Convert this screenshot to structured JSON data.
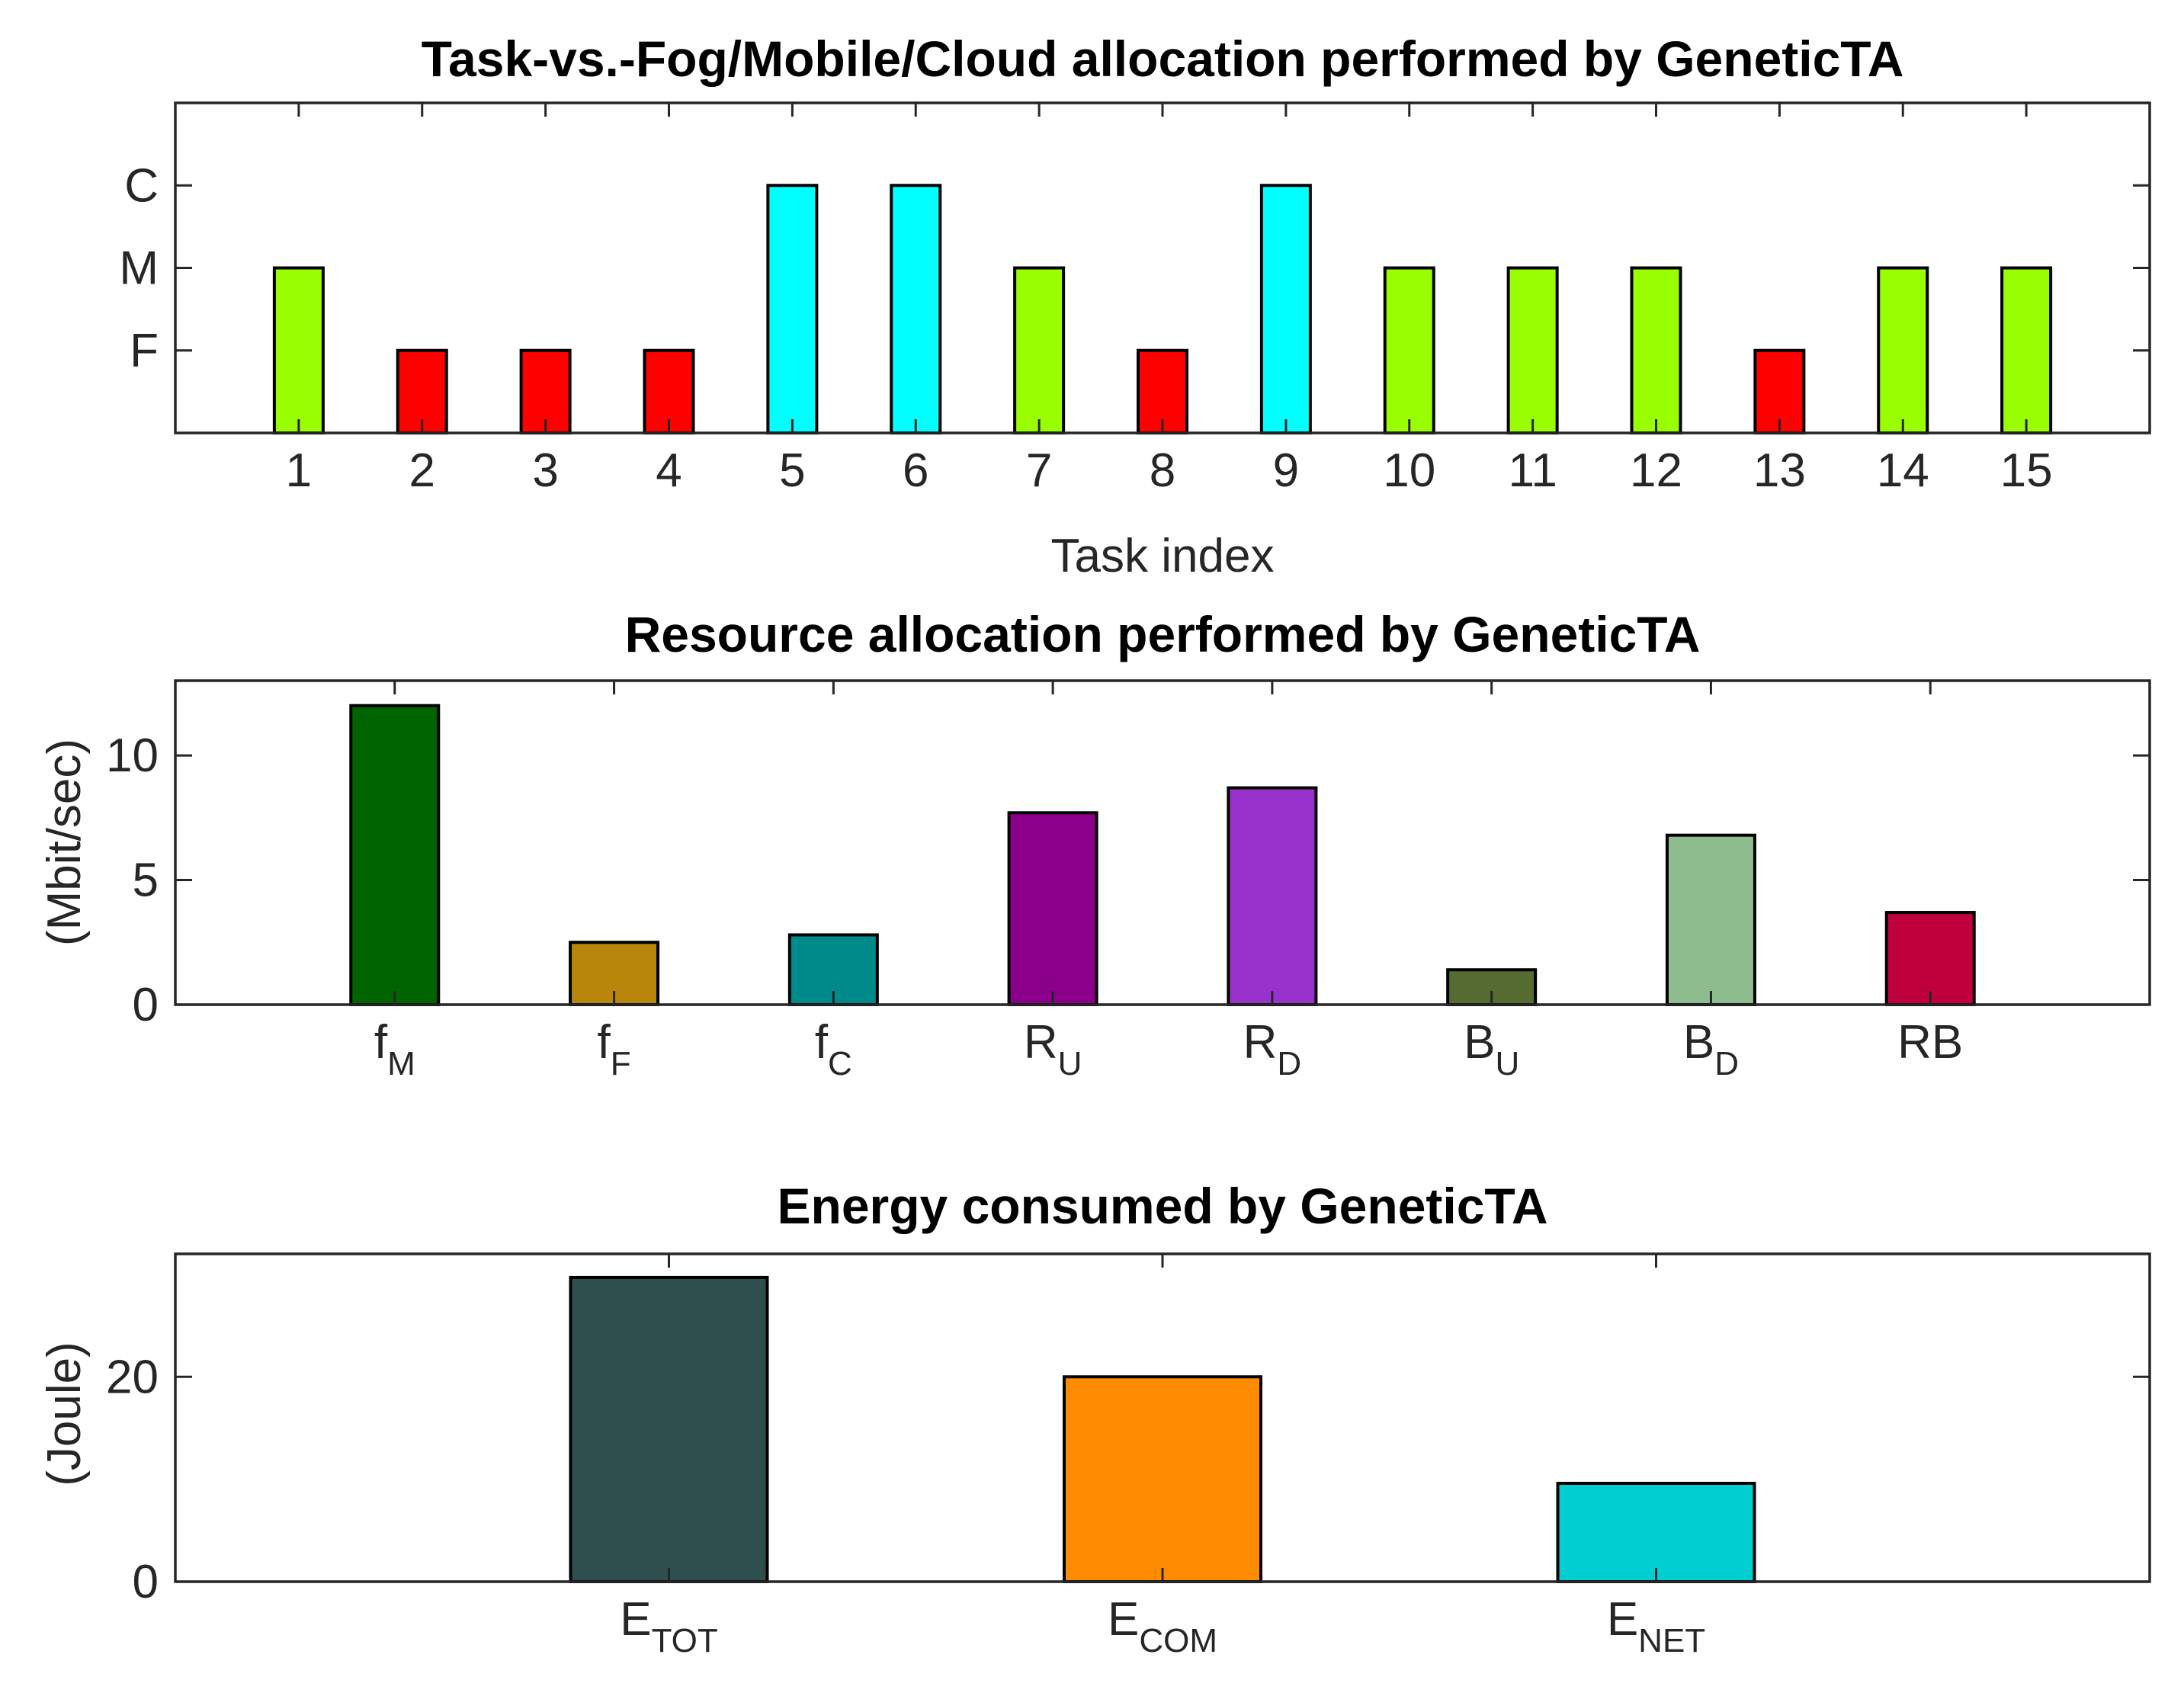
{
  "chart_data": [
    {
      "type": "bar",
      "title": "Task-vs.-Fog/Mobile/Cloud allocation performed by GeneticTA",
      "xlabel": "Task index",
      "ylabel": "",
      "categories": [
        "1",
        "2",
        "3",
        "4",
        "5",
        "6",
        "7",
        "8",
        "9",
        "10",
        "11",
        "12",
        "13",
        "14",
        "15"
      ],
      "values": [
        2,
        1,
        1,
        1,
        3,
        3,
        2,
        1,
        3,
        2,
        2,
        2,
        1,
        2,
        2
      ],
      "value_meaning": {
        "1": "F",
        "2": "M",
        "3": "C"
      },
      "yticks": [
        {
          "value": 1,
          "label": "F"
        },
        {
          "value": 2,
          "label": "M"
        },
        {
          "value": 3,
          "label": "C"
        }
      ],
      "ylim": [
        0,
        4
      ],
      "xlim": [
        0,
        16
      ],
      "colors": {
        "F": "#ff0000",
        "M": "#99ff00",
        "C": "#00ffff"
      },
      "grid": false
    },
    {
      "type": "bar",
      "title": "Resource allocation performed by GeneticTA",
      "xlabel": "",
      "ylabel": "(Mbit/sec)",
      "categories": [
        {
          "main": "f",
          "sub": "M"
        },
        {
          "main": "f",
          "sub": "F"
        },
        {
          "main": "f",
          "sub": "C"
        },
        {
          "main": "R",
          "sub": "U"
        },
        {
          "main": "R",
          "sub": "D"
        },
        {
          "main": "B",
          "sub": "U"
        },
        {
          "main": "B",
          "sub": "D"
        },
        {
          "main": "RB",
          "sub": ""
        }
      ],
      "values": [
        12.0,
        2.5,
        2.8,
        7.7,
        8.7,
        1.4,
        6.8,
        3.7
      ],
      "colors": [
        "#006400",
        "#b8860b",
        "#008b8b",
        "#8b008b",
        "#9932cc",
        "#556b2f",
        "#8fbc8f",
        "#c0003c"
      ],
      "yticks": [
        "0",
        "5",
        "10"
      ],
      "ylim": [
        0,
        13
      ],
      "xlim": [
        0,
        9
      ],
      "grid": false
    },
    {
      "type": "bar",
      "title": "Energy consumed by GeneticTA",
      "xlabel": "",
      "ylabel": "(Joule)",
      "categories": [
        {
          "main": "E",
          "sub": "TOT"
        },
        {
          "main": "E",
          "sub": "COM"
        },
        {
          "main": "E",
          "sub": "NET"
        }
      ],
      "values": [
        29.7,
        20.0,
        9.6
      ],
      "colors": [
        "#2f4f4f",
        "#ff8c00",
        "#00ced1"
      ],
      "yticks": [
        "0",
        "20"
      ],
      "ylim": [
        0,
        32
      ],
      "xlim": [
        0,
        4
      ],
      "grid": false
    }
  ]
}
